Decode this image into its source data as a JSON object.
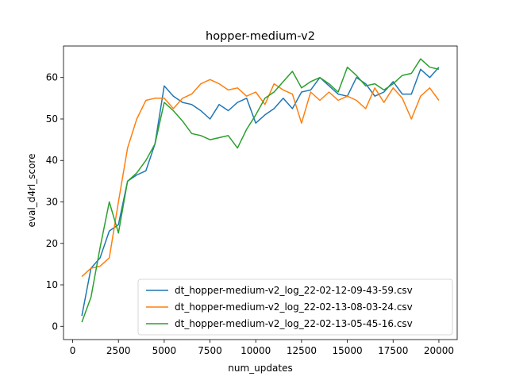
{
  "chart_data": {
    "type": "line",
    "title": "hopper-medium-v2",
    "xlabel": "num_updates",
    "ylabel": "eval_d4rl_score",
    "xlim": [
      -500,
      21000
    ],
    "ylim": [
      -3.2,
      67.6
    ],
    "xticks": [
      0,
      2500,
      5000,
      7500,
      10000,
      12500,
      15000,
      17500,
      20000
    ],
    "yticks": [
      0,
      10,
      20,
      30,
      40,
      50,
      60
    ],
    "grid": false,
    "legend_position": "lower-right",
    "series": [
      {
        "name": "dt_hopper-medium-v2_log_22-02-12-09-43-59.csv",
        "color": "#1f77b4",
        "x": [
          500,
          1000,
          1500,
          2000,
          2500,
          3000,
          3500,
          4000,
          4500,
          5000,
          5500,
          6000,
          6500,
          7000,
          7500,
          8000,
          8500,
          9000,
          9500,
          10000,
          10500,
          11000,
          11500,
          12000,
          12500,
          13000,
          13500,
          14000,
          14500,
          15000,
          15500,
          16000,
          16500,
          17000,
          17500,
          18000,
          18500,
          19000,
          19500,
          20000
        ],
        "y": [
          2.5,
          14.0,
          16.5,
          23.0,
          24.5,
          35.0,
          36.5,
          37.5,
          44.0,
          58.0,
          55.5,
          54.0,
          53.5,
          52.0,
          50.0,
          53.5,
          52.0,
          54.0,
          55.0,
          49.0,
          51.0,
          52.5,
          55.0,
          52.5,
          56.5,
          57.0,
          60.0,
          58.0,
          56.0,
          55.5,
          60.0,
          58.5,
          55.5,
          56.5,
          59.0,
          56.0,
          56.0,
          62.0,
          60.0,
          62.5
        ]
      },
      {
        "name": "dt_hopper-medium-v2_log_22-02-13-08-03-24.csv",
        "color": "#ff7f0e",
        "x": [
          500,
          1000,
          1500,
          2000,
          2500,
          3000,
          3500,
          4000,
          4500,
          5000,
          5500,
          6000,
          6500,
          7000,
          7500,
          8000,
          8500,
          9000,
          9500,
          10000,
          10500,
          11000,
          11500,
          12000,
          12500,
          13000,
          13500,
          14000,
          14500,
          15000,
          15500,
          16000,
          16500,
          17000,
          17500,
          18000,
          18500,
          19000,
          19500,
          20000
        ],
        "y": [
          12.0,
          14.0,
          14.5,
          16.5,
          30.0,
          43.0,
          50.0,
          54.5,
          55.0,
          55.0,
          52.5,
          55.0,
          56.0,
          58.5,
          59.5,
          58.5,
          57.0,
          57.5,
          55.5,
          56.5,
          53.5,
          58.5,
          57.0,
          56.0,
          49.0,
          56.5,
          54.5,
          56.5,
          54.5,
          55.5,
          54.5,
          52.5,
          57.5,
          54.0,
          57.5,
          55.0,
          50.0,
          55.5,
          57.5,
          54.5
        ]
      },
      {
        "name": "dt_hopper-medium-v2_log_22-02-13-05-45-16.csv",
        "color": "#2ca02c",
        "x": [
          500,
          1000,
          1500,
          2000,
          2500,
          3000,
          3500,
          4000,
          4500,
          5000,
          5500,
          6000,
          6500,
          7000,
          7500,
          8000,
          8500,
          9000,
          9500,
          10000,
          10500,
          11000,
          11500,
          12000,
          12500,
          13000,
          13500,
          14000,
          14500,
          15000,
          15500,
          16000,
          16500,
          17000,
          17500,
          18000,
          18500,
          19000,
          19500,
          20000
        ],
        "y": [
          1.0,
          7.0,
          19.0,
          30.0,
          22.5,
          35.0,
          37.0,
          40.0,
          44.0,
          54.0,
          52.0,
          49.5,
          46.5,
          46.0,
          45.0,
          45.5,
          46.0,
          43.0,
          47.5,
          51.0,
          55.0,
          56.5,
          59.0,
          61.5,
          57.5,
          59.0,
          60.0,
          58.5,
          56.5,
          62.5,
          60.5,
          58.0,
          58.5,
          57.0,
          58.5,
          60.5,
          61.0,
          64.5,
          62.5,
          62.0
        ]
      }
    ]
  }
}
